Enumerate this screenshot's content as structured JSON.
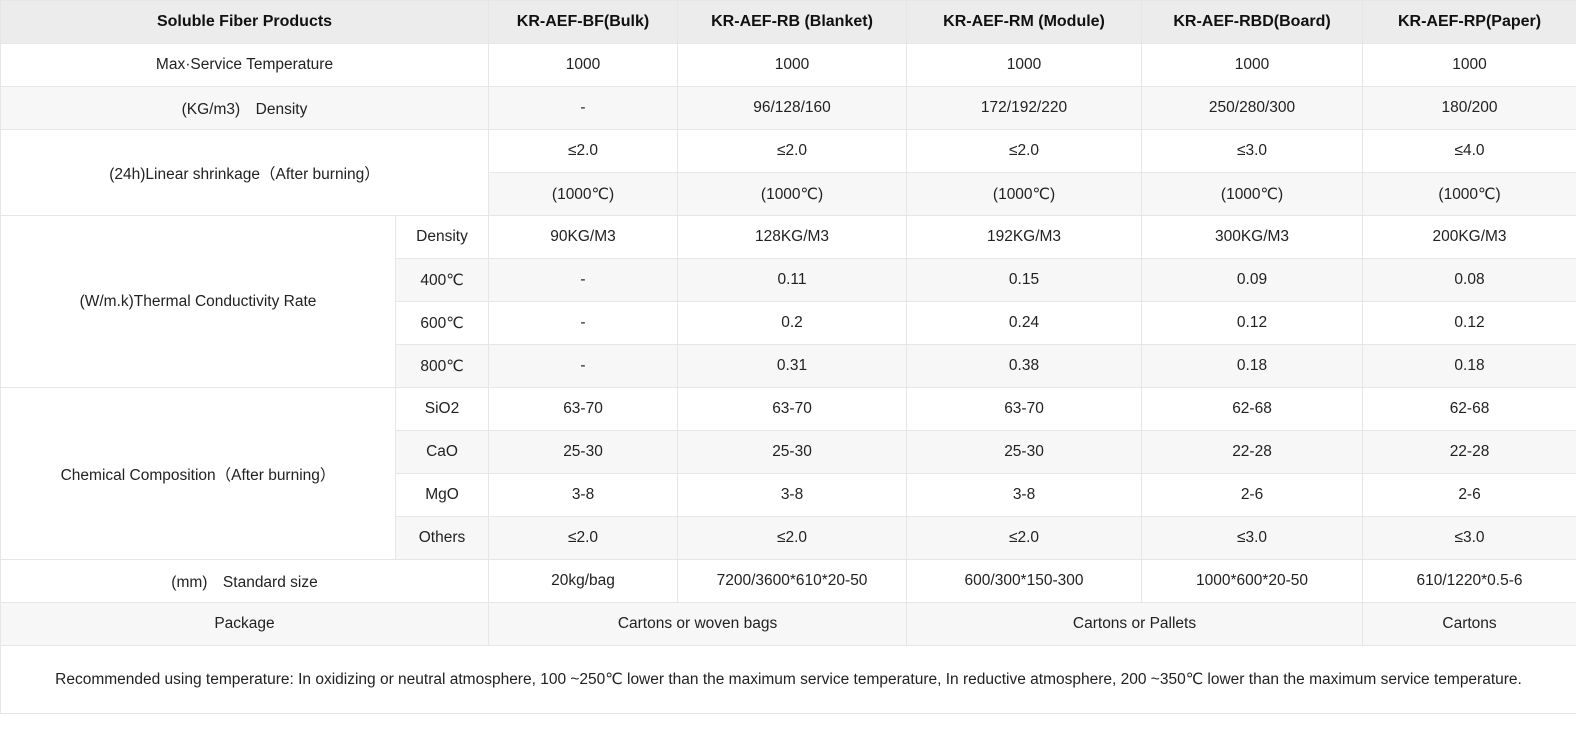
{
  "header": {
    "col0": "Soluble Fiber Products",
    "products": [
      "KR-AEF-BF(Bulk)",
      "KR-AEF-RB (Blanket)",
      "KR-AEF-RM (Module)",
      "KR-AEF-RBD(Board)",
      "KR-AEF-RP(Paper)"
    ]
  },
  "max_temp": {
    "label": "Max·Service Temperature",
    "values": [
      "1000",
      "1000",
      "1000",
      "1000",
      "1000"
    ]
  },
  "density": {
    "label": "(KG/m3)　Density",
    "values": [
      "-",
      "96/128/160",
      "172/192/220",
      "250/280/300",
      "180/200"
    ]
  },
  "shrinkage": {
    "label": "(24h)Linear shrinkage（After burning）",
    "values": [
      "≤2.0",
      "≤2.0",
      "≤2.0",
      "≤3.0",
      "≤4.0"
    ],
    "temps": [
      "(1000℃)",
      "(1000℃)",
      "(1000℃)",
      "(1000℃)",
      "(1000℃)"
    ]
  },
  "thermal": {
    "label": "(W/m.k)Thermal Conductivity Rate",
    "rows": [
      {
        "sub": "Density",
        "values": [
          "90KG/M3",
          "128KG/M3",
          "192KG/M3",
          "300KG/M3",
          "200KG/M3"
        ]
      },
      {
        "sub": "400℃",
        "values": [
          "-",
          "0.11",
          "0.15",
          "0.09",
          "0.08"
        ]
      },
      {
        "sub": "600℃",
        "values": [
          "-",
          "0.2",
          "0.24",
          "0.12",
          "0.12"
        ]
      },
      {
        "sub": "800℃",
        "values": [
          "-",
          "0.31",
          "0.38",
          "0.18",
          "0.18"
        ]
      }
    ]
  },
  "chemical": {
    "label": "Chemical Composition（After burning）",
    "rows": [
      {
        "sub": "SiO2",
        "values": [
          "63-70",
          "63-70",
          "63-70",
          "62-68",
          "62-68"
        ]
      },
      {
        "sub": "CaO",
        "values": [
          "25-30",
          "25-30",
          "25-30",
          "22-28",
          "22-28"
        ]
      },
      {
        "sub": "MgO",
        "values": [
          "3-8",
          "3-8",
          "3-8",
          "2-6",
          "2-6"
        ]
      },
      {
        "sub": "Others",
        "values": [
          "≤2.0",
          "≤2.0",
          "≤2.0",
          "≤3.0",
          "≤3.0"
        ]
      }
    ]
  },
  "standard_size": {
    "label": "(mm)　Standard size",
    "values": [
      "20kg/bag",
      "7200/3600*610*20-50",
      "600/300*150-300",
      "1000*600*20-50",
      "610/1220*0.5-6"
    ]
  },
  "package": {
    "label": "Package",
    "values": [
      "Cartons or woven bags",
      "Cartons or Pallets",
      "Cartons"
    ]
  },
  "note": "Recommended using temperature: In oxidizing or neutral atmosphere, 100 ~250℃ lower than the maximum service temperature, In reductive atmosphere, 200 ~350℃ lower than the maximum service temperature."
}
